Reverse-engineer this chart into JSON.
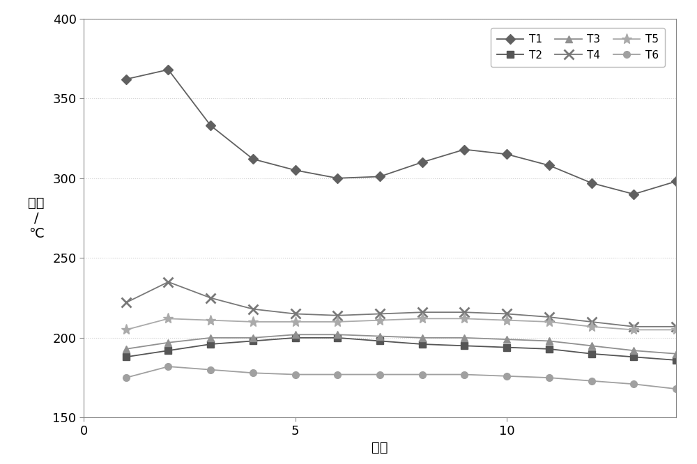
{
  "x": [
    1,
    2,
    3,
    4,
    5,
    6,
    7,
    8,
    9,
    10,
    11,
    12,
    13,
    14
  ],
  "T1": [
    362,
    368,
    333,
    312,
    305,
    300,
    301,
    310,
    318,
    315,
    308,
    297,
    290,
    298
  ],
  "T2": [
    188,
    192,
    196,
    198,
    200,
    200,
    198,
    196,
    195,
    194,
    193,
    190,
    188,
    186
  ],
  "T3": [
    193,
    197,
    200,
    200,
    202,
    202,
    201,
    200,
    200,
    199,
    198,
    195,
    192,
    190
  ],
  "T4": [
    222,
    235,
    225,
    218,
    215,
    214,
    215,
    216,
    216,
    215,
    213,
    210,
    207,
    207
  ],
  "T5": [
    205,
    212,
    211,
    210,
    210,
    210,
    211,
    212,
    212,
    211,
    210,
    207,
    205,
    205
  ],
  "T6": [
    175,
    182,
    180,
    178,
    177,
    177,
    177,
    177,
    177,
    176,
    175,
    173,
    171,
    168
  ],
  "xlim": [
    1,
    14
  ],
  "ylim": [
    150,
    400
  ],
  "yticks": [
    150,
    200,
    250,
    300,
    350,
    400
  ],
  "xticks": [
    0,
    5,
    10
  ],
  "xlabel": "时间",
  "ylabel_top": "温度",
  "ylabel_bottom": "℃",
  "background_color": "#ffffff",
  "gray1": "#606060",
  "gray2": "#555555",
  "gray3": "#909090",
  "gray4": "#787878",
  "gray5": "#aaaaaa",
  "gray6": "#a0a0a0",
  "grid_color": "#d0d0d0",
  "spine_color": "#888888",
  "font_size": 14,
  "tick_size": 13,
  "lw": 1.3,
  "ms": 7
}
